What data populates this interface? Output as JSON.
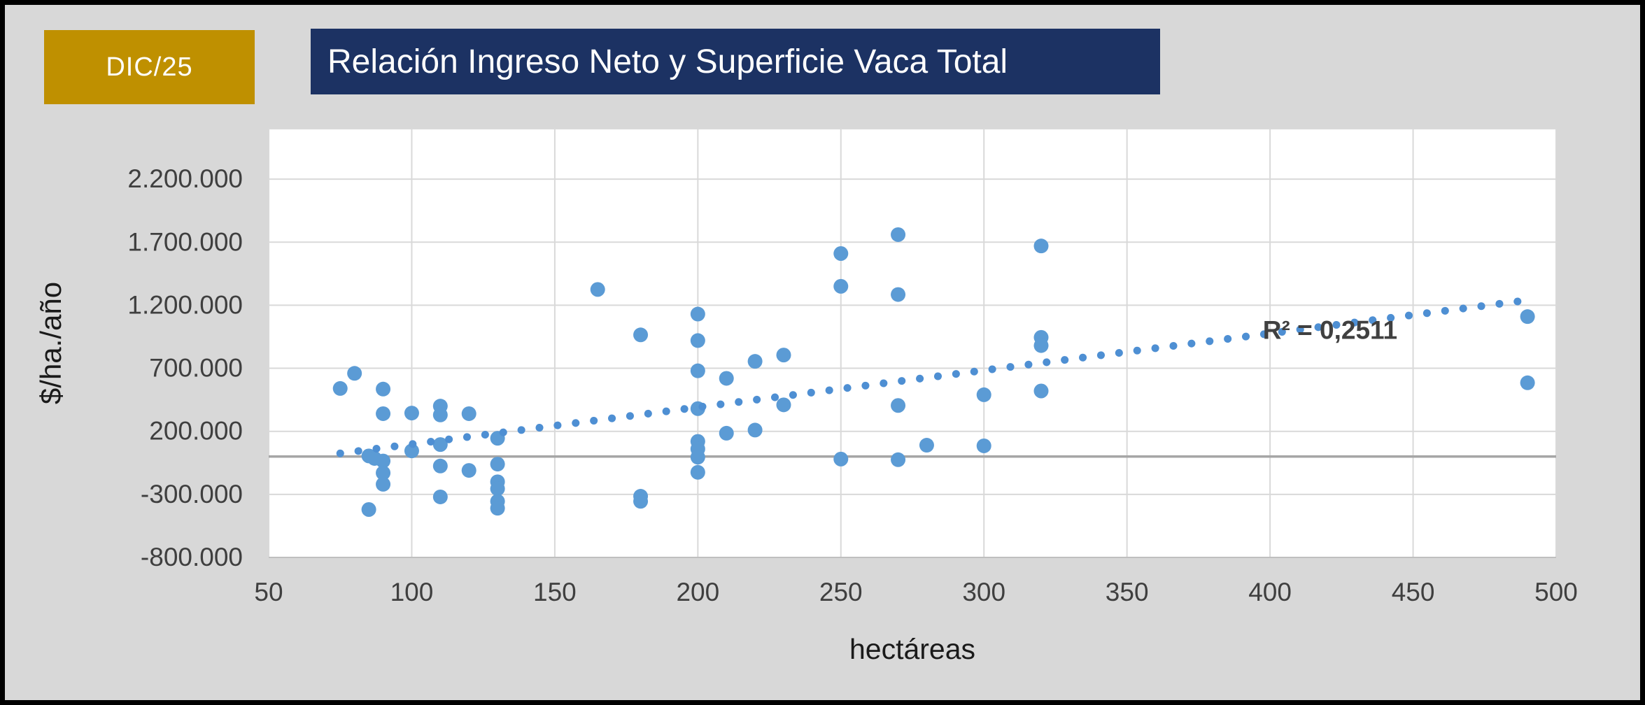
{
  "header": {
    "badge": "DIC/25",
    "title": "Relación Ingreso Neto y Superficie Vaca Total"
  },
  "colors": {
    "page_bg": "#D8D8D8",
    "frame": "#000000",
    "badge_bg": "#BF9000",
    "badge_text": "#FFFFFF",
    "title_bg": "#1C3263",
    "title_text": "#FFFFFF",
    "plot_bg": "#FFFFFF",
    "gridline": "#D9D9D9",
    "zero_line": "#A6A6A6",
    "axis_line": "#BFBFBF",
    "tick_text": "#3F3F3F",
    "axis_title_text": "#1A1A1A",
    "point_color": "#5B9BD5",
    "trendline_color": "#4E8FD3",
    "r2_text": "#404040"
  },
  "chart_data": {
    "type": "scatter",
    "title": "Relación Ingreso Neto y Superficie Vaca Total",
    "xlabel": "hectáreas",
    "ylabel": "$/ha./año",
    "xlim": [
      50,
      500
    ],
    "ylim": [
      -800000,
      2600000
    ],
    "grid": true,
    "legend_position": "none",
    "x_ticks": [
      50,
      100,
      150,
      200,
      250,
      300,
      350,
      400,
      450,
      500
    ],
    "y_ticks": [
      {
        "value": 2200000,
        "label": "2.200.000"
      },
      {
        "value": 1700000,
        "label": "1.700.000"
      },
      {
        "value": 1200000,
        "label": "1.200.000"
      },
      {
        "value": 700000,
        "label": "700.000"
      },
      {
        "value": 200000,
        "label": "200.000"
      },
      {
        "value": -300000,
        "label": "-300.000"
      },
      {
        "value": -800000,
        "label": "-800.000"
      }
    ],
    "points": [
      [
        75,
        540000
      ],
      [
        80,
        660000
      ],
      [
        90,
        535000
      ],
      [
        90,
        340000
      ],
      [
        100,
        345000
      ],
      [
        110,
        400000
      ],
      [
        110,
        330000
      ],
      [
        120,
        340000
      ],
      [
        130,
        145000
      ],
      [
        100,
        45000
      ],
      [
        110,
        95000
      ],
      [
        85,
        5000
      ],
      [
        87,
        -15000
      ],
      [
        90,
        -35000
      ],
      [
        90,
        -130000
      ],
      [
        90,
        -220000
      ],
      [
        110,
        -75000
      ],
      [
        120,
        -110000
      ],
      [
        130,
        -60000
      ],
      [
        85,
        -420000
      ],
      [
        110,
        -320000
      ],
      [
        130,
        -200000
      ],
      [
        130,
        -255000
      ],
      [
        130,
        -355000
      ],
      [
        130,
        -410000
      ],
      [
        165,
        1325000
      ],
      [
        180,
        965000
      ],
      [
        200,
        1130000
      ],
      [
        200,
        920000
      ],
      [
        200,
        680000
      ],
      [
        210,
        620000
      ],
      [
        220,
        755000
      ],
      [
        230,
        805000
      ],
      [
        200,
        380000
      ],
      [
        230,
        410000
      ],
      [
        200,
        120000
      ],
      [
        200,
        60000
      ],
      [
        200,
        -5000
      ],
      [
        200,
        -125000
      ],
      [
        210,
        185000
      ],
      [
        220,
        210000
      ],
      [
        250,
        1610000
      ],
      [
        250,
        1350000
      ],
      [
        250,
        -20000
      ],
      [
        180,
        -315000
      ],
      [
        180,
        -355000
      ],
      [
        270,
        1760000
      ],
      [
        270,
        1285000
      ],
      [
        270,
        405000
      ],
      [
        270,
        -25000
      ],
      [
        280,
        90000
      ],
      [
        300,
        490000
      ],
      [
        300,
        85000
      ],
      [
        320,
        1670000
      ],
      [
        320,
        945000
      ],
      [
        320,
        880000
      ],
      [
        320,
        520000
      ],
      [
        490,
        1110000
      ],
      [
        490,
        585000
      ]
    ],
    "trendline": {
      "style": "dotted",
      "x1": 75,
      "y1": 25000,
      "x2": 490,
      "y2": 1240000,
      "r2_label": "R² = 0,2511",
      "r2_label_pos": [
        421,
        1000000
      ]
    }
  }
}
